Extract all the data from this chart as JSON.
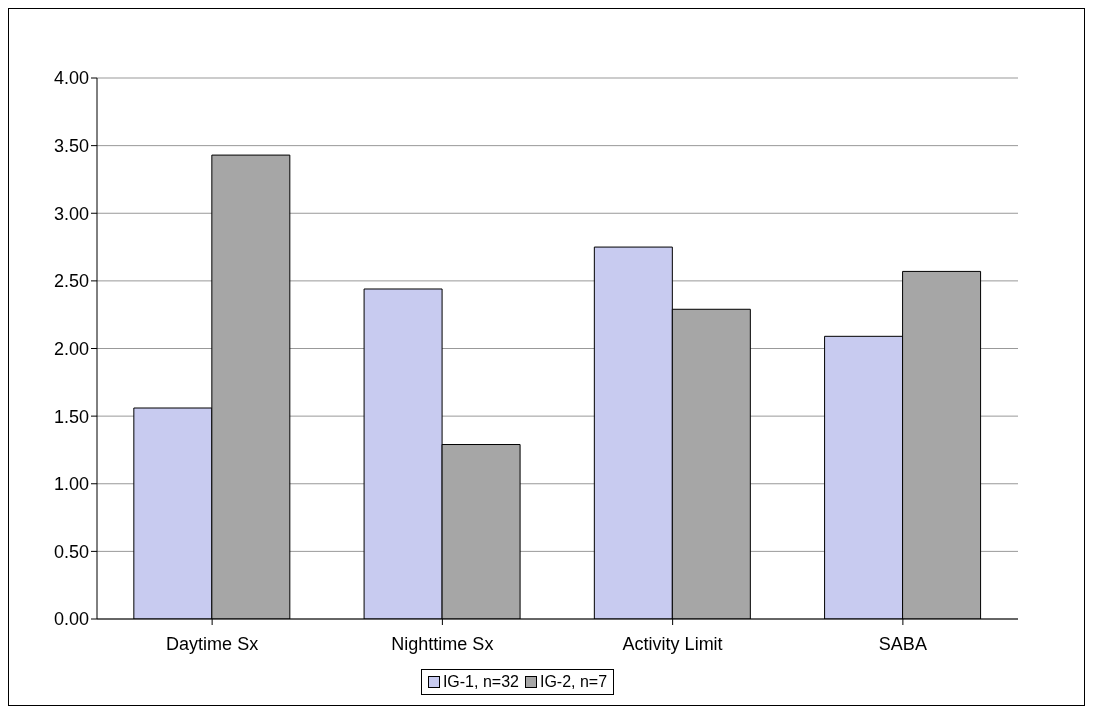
{
  "chart_data": {
    "type": "bar",
    "categories": [
      "Daytime Sx",
      "Nighttime Sx",
      "Activity Limit",
      "SABA"
    ],
    "series": [
      {
        "name": "IG-1, n=32",
        "color": "#c8cbf0",
        "values": [
          1.56,
          2.44,
          2.75,
          2.09
        ]
      },
      {
        "name": "IG-2, n=7",
        "color": "#a6a6a6",
        "values": [
          3.43,
          1.29,
          2.29,
          2.57
        ]
      }
    ],
    "ylim": [
      0,
      4
    ],
    "yticks": [
      {
        "value": 0,
        "label": "0.00"
      },
      {
        "value": 0.5,
        "label": "0.50"
      },
      {
        "value": 1,
        "label": "1.00"
      },
      {
        "value": 1.5,
        "label": "1.50"
      },
      {
        "value": 2,
        "label": "2.00"
      },
      {
        "value": 2.5,
        "label": "2.50"
      },
      {
        "value": 3,
        "label": "3.00"
      },
      {
        "value": 3.5,
        "label": "3.50"
      },
      {
        "value": 4,
        "label": "4.00"
      }
    ],
    "grid": "y",
    "legend": "bottom"
  }
}
